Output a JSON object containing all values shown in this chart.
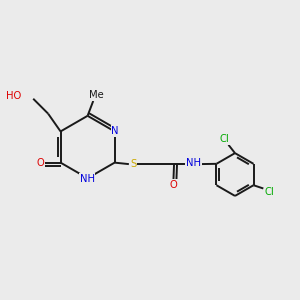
{
  "bg_color": "#ebebeb",
  "line_color": "#1a1a1a",
  "N_color": "#0000dd",
  "O_color": "#dd0000",
  "S_color": "#ccaa00",
  "Cl_color": "#00aa00",
  "font_size": 7.2,
  "lw": 1.4,
  "figsize": [
    3.0,
    3.0
  ],
  "dpi": 100,
  "xlim": [
    0,
    10
  ],
  "ylim": [
    0,
    10
  ]
}
